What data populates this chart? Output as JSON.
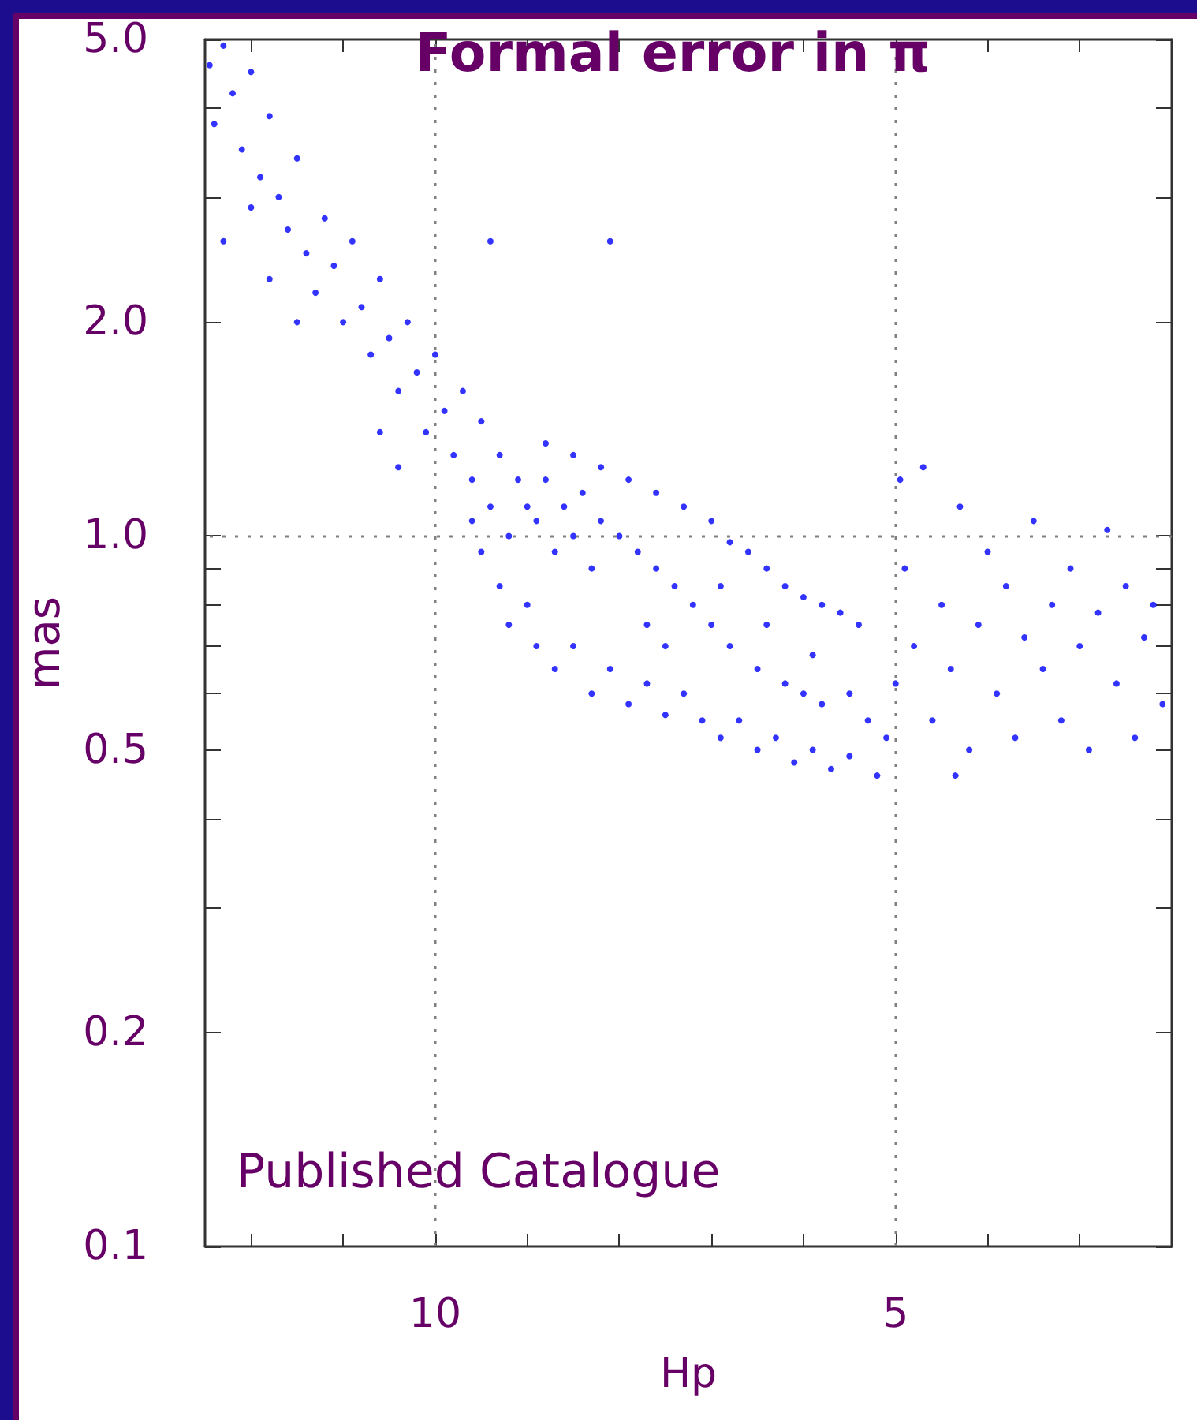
{
  "chart_data": {
    "type": "scatter",
    "title": "Formal error in π",
    "xlabel": "Hp",
    "ylabel": "mas",
    "annotations": [
      "Published Catalogue"
    ],
    "log": "y",
    "grid": false,
    "marker": "circle",
    "xlim": [
      12.5,
      2
    ],
    "xticks": [
      {
        "value": 12,
        "label": null
      },
      {
        "value": 11,
        "label": null
      },
      10,
      {
        "value": 9,
        "label": null
      },
      {
        "value": 8,
        "label": null
      },
      {
        "value": 7,
        "label": null
      },
      {
        "value": 6,
        "label": null
      },
      5,
      {
        "value": 4,
        "label": null
      },
      {
        "value": 3,
        "label": null
      }
    ],
    "ylim": [
      0.1,
      5
    ],
    "yticks": [
      {
        "value": 0.1,
        "label": "0.1"
      },
      {
        "value": 0.2,
        "label": "0.2"
      },
      {
        "value": 0.3,
        "label": null
      },
      {
        "value": 0.4,
        "label": null
      },
      {
        "value": 0.5,
        "label": "0.5"
      },
      {
        "value": 0.6,
        "label": null
      },
      {
        "value": 0.7,
        "label": null
      },
      {
        "value": 0.8,
        "label": null
      },
      {
        "value": 0.9,
        "label": null
      },
      {
        "value": 1,
        "label": "1.0"
      },
      {
        "value": 2,
        "label": "2.0"
      },
      {
        "value": 3,
        "label": null
      },
      {
        "value": 4,
        "label": null
      },
      {
        "value": 5,
        "label": "5.0"
      }
    ],
    "ref_lines": [
      {
        "axis": "x",
        "value": 10,
        "color": "#808080",
        "line_style": "dotted"
      },
      {
        "axis": "x",
        "value": 5,
        "color": "#808080",
        "line_style": "dotted"
      },
      {
        "axis": "y",
        "value": 1,
        "color": "#808080",
        "line_style": "dotted"
      }
    ],
    "series": [
      {
        "color": "#0000ff",
        "x": [
          12.45,
          12.4,
          12.3,
          12.2,
          12.1,
          12.0,
          11.9,
          12.3,
          11.8,
          11.7,
          12.0,
          11.6,
          11.5,
          11.4,
          11.3,
          11.2,
          11.1,
          11.0,
          11.5,
          11.8,
          10.9,
          10.8,
          10.7,
          10.6,
          10.5,
          10.4,
          10.3,
          10.2,
          10.1,
          10.0,
          10.6,
          10.4,
          9.9,
          9.8,
          9.7,
          9.6,
          9.5,
          9.4,
          9.3,
          9.2,
          9.1,
          9.0,
          9.6,
          9.5,
          9.3,
          9.2,
          9.0,
          8.9,
          9.4,
          8.1,
          8.9,
          8.8,
          8.7,
          8.6,
          8.5,
          8.4,
          8.3,
          8.2,
          8.0,
          7.8,
          7.6,
          7.4,
          7.2,
          8.7,
          8.5,
          8.3,
          8.1,
          7.9,
          7.7,
          7.5,
          7.3,
          7.1,
          6.9,
          6.7,
          6.5,
          6.3,
          6.1,
          5.9,
          5.7,
          5.5,
          5.2,
          8.8,
          8.5,
          8.2,
          7.9,
          7.6,
          7.3,
          7.0,
          6.8,
          6.6,
          6.4,
          6.2,
          6.0,
          5.8,
          5.6,
          5.4,
          7.0,
          6.8,
          6.5,
          6.2,
          6.0,
          5.8,
          5.5,
          5.3,
          5.1,
          7.7,
          7.5,
          6.9,
          6.4,
          5.9,
          4.9,
          4.8,
          4.7,
          4.6,
          4.5,
          4.4,
          4.3,
          4.2,
          4.1,
          4.0,
          3.9,
          3.8,
          3.7,
          3.6,
          3.5,
          3.4,
          3.3,
          3.2,
          3.1,
          3.0,
          2.9,
          2.8,
          2.7,
          2.6,
          2.5,
          2.4,
          2.3,
          2.2,
          2.1,
          4.35,
          5.0,
          4.95
        ],
        "values": [
          4.6,
          3.8,
          4.9,
          4.2,
          3.5,
          4.5,
          3.2,
          2.6,
          3.9,
          3.0,
          2.9,
          2.7,
          3.4,
          2.5,
          2.2,
          2.8,
          2.4,
          2.0,
          2.0,
          2.3,
          2.6,
          2.1,
          1.8,
          2.3,
          1.9,
          1.6,
          2.0,
          1.7,
          1.4,
          1.8,
          1.4,
          1.25,
          1.5,
          1.3,
          1.6,
          1.2,
          1.45,
          1.1,
          1.3,
          1.0,
          1.2,
          1.1,
          1.05,
          0.95,
          0.85,
          0.75,
          0.8,
          0.7,
          2.6,
          2.6,
          1.05,
          1.2,
          0.95,
          1.1,
          1.0,
          1.15,
          0.9,
          1.05,
          1.0,
          0.95,
          0.9,
          0.85,
          0.8,
          0.65,
          0.7,
          0.6,
          0.65,
          0.58,
          0.62,
          0.56,
          0.6,
          0.55,
          0.52,
          0.55,
          0.5,
          0.52,
          0.48,
          0.5,
          0.47,
          0.49,
          0.46,
          1.35,
          1.3,
          1.25,
          1.2,
          1.15,
          1.1,
          1.05,
          0.98,
          0.95,
          0.9,
          0.85,
          0.82,
          0.8,
          0.78,
          0.75,
          0.75,
          0.7,
          0.65,
          0.62,
          0.6,
          0.58,
          0.6,
          0.55,
          0.52,
          0.75,
          0.7,
          0.85,
          0.75,
          0.68,
          0.9,
          0.7,
          1.25,
          0.55,
          0.8,
          0.65,
          1.1,
          0.5,
          0.75,
          0.95,
          0.6,
          0.85,
          0.52,
          0.72,
          1.05,
          0.65,
          0.8,
          0.55,
          0.9,
          0.7,
          0.5,
          0.78,
          1.02,
          0.62,
          0.85,
          0.52,
          0.72,
          0.8,
          0.58,
          0.46,
          0.62,
          1.2
        ]
      }
    ]
  }
}
